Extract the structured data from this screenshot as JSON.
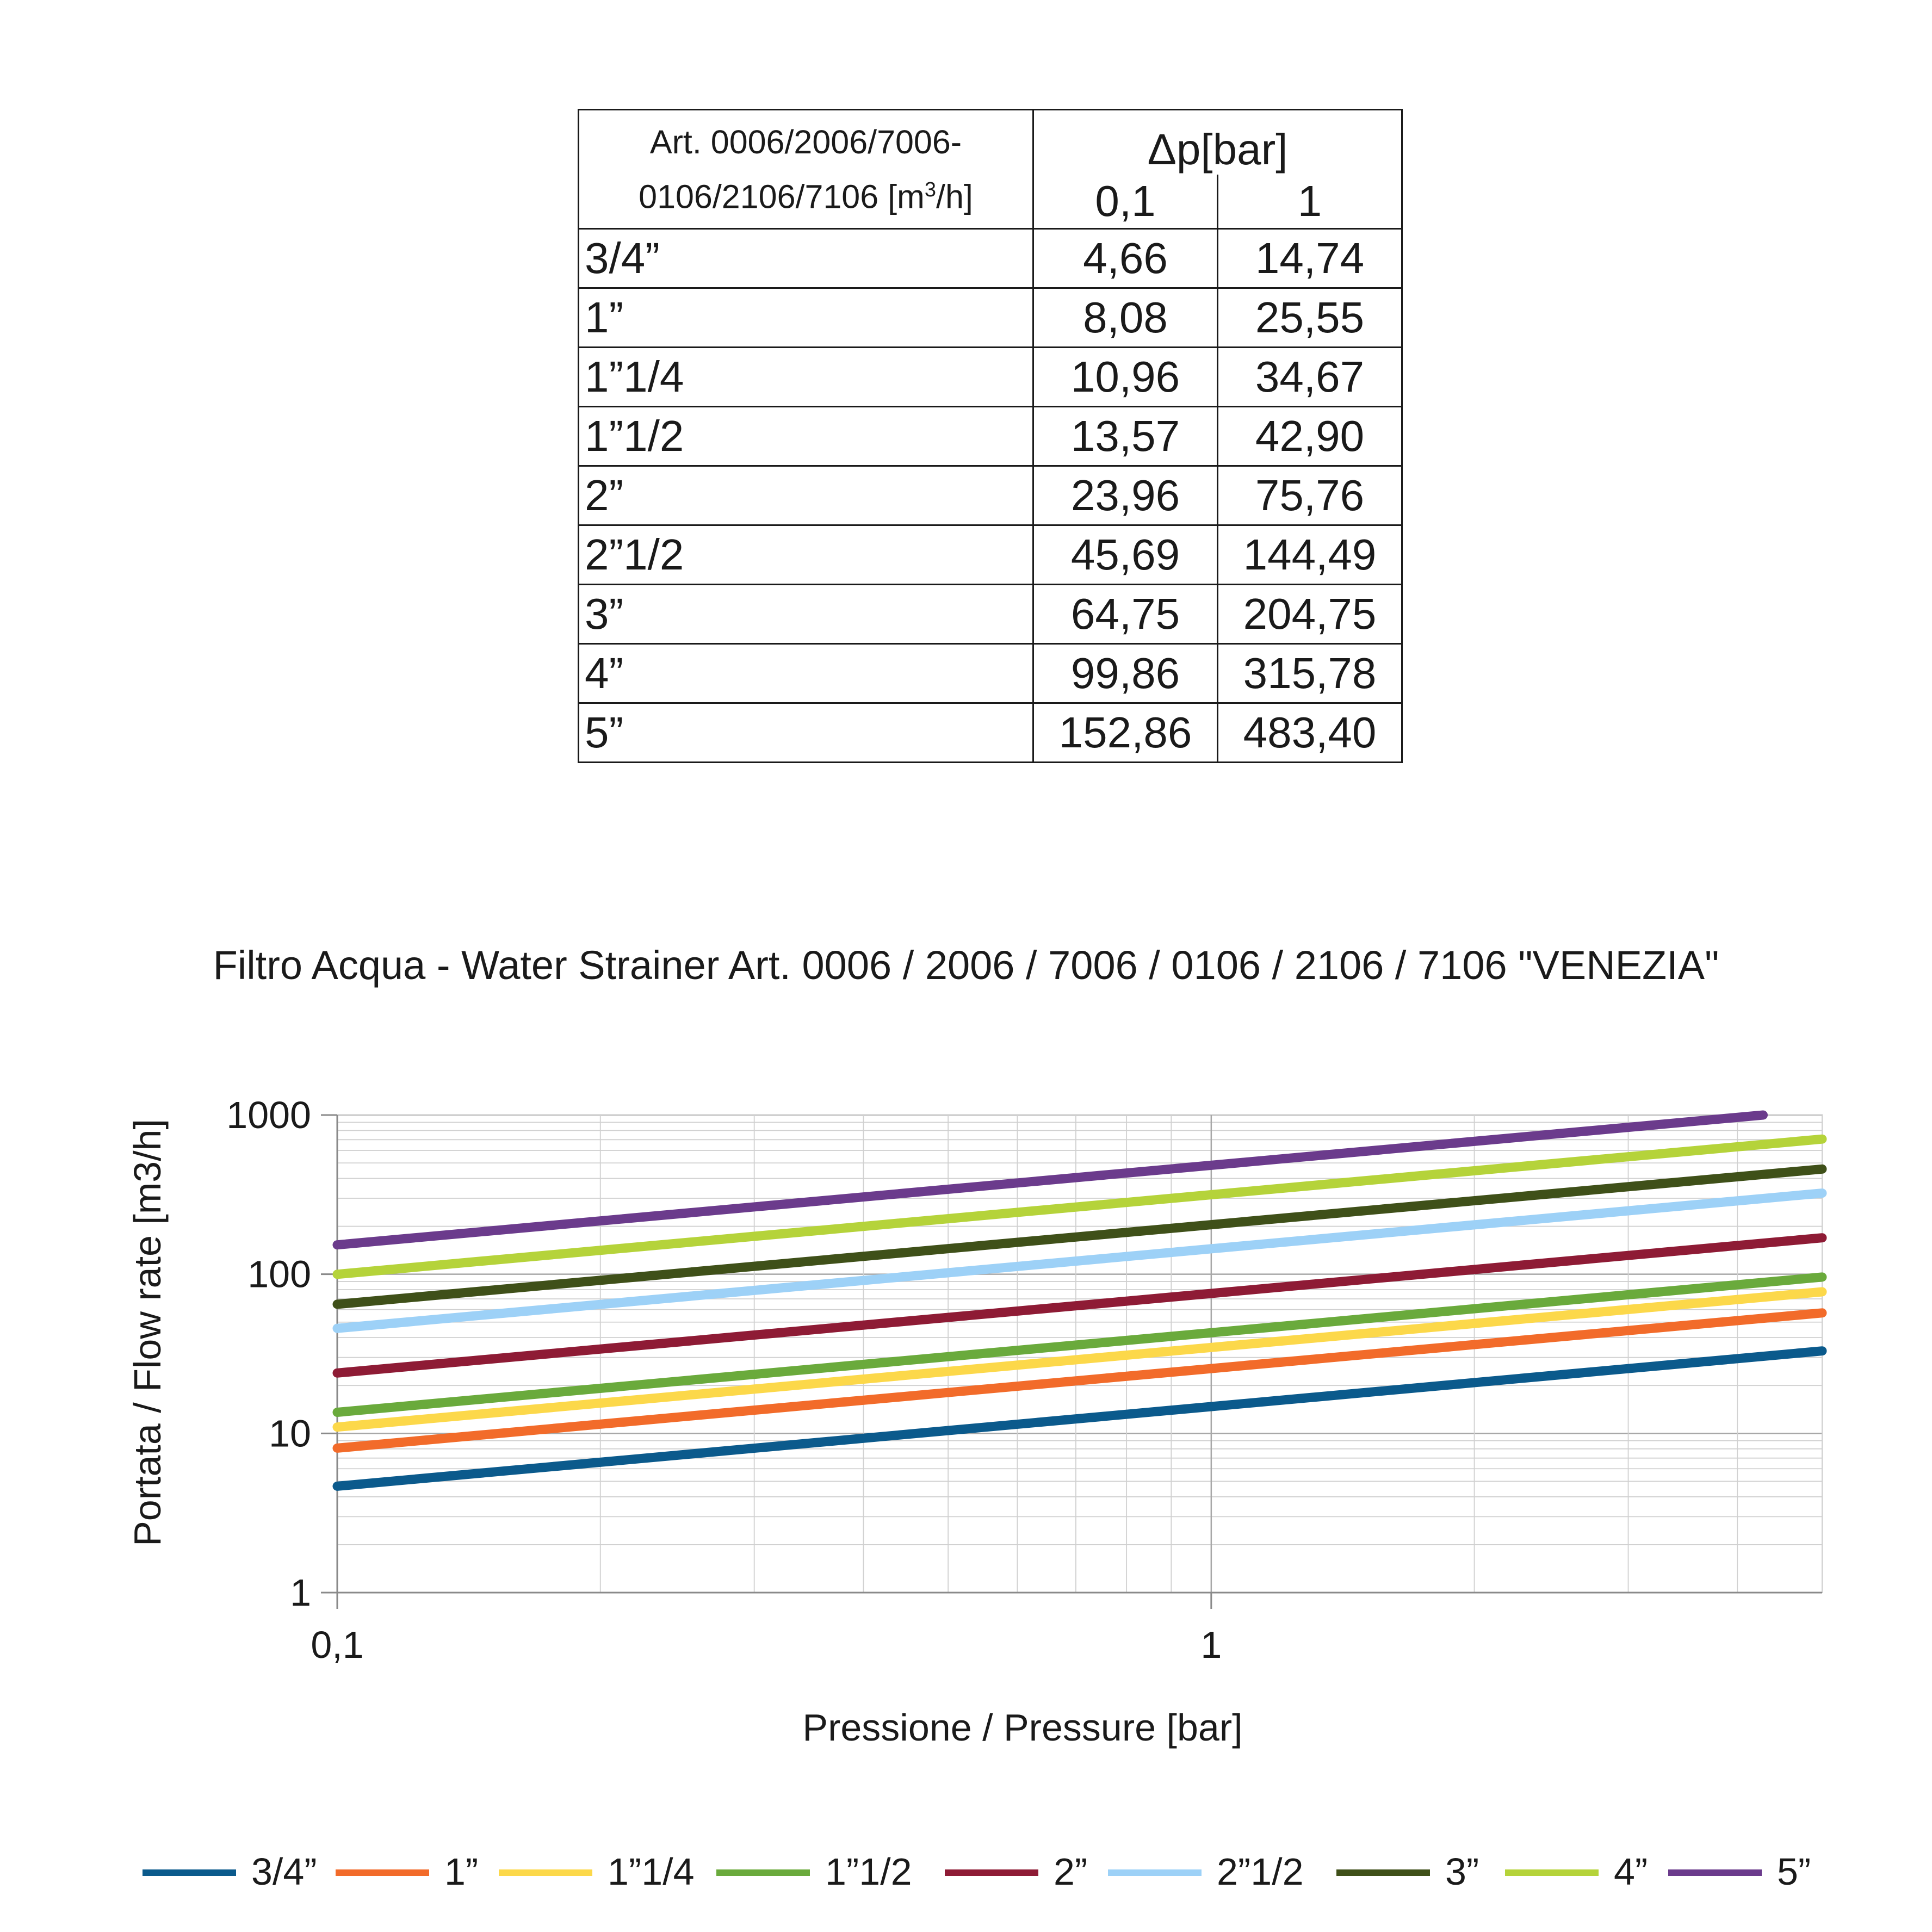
{
  "table": {
    "header_label_line1": "Art. 0006/2006/7006-",
    "header_label_line2_pre": "0106/2106/7106 [m",
    "header_label_sup": "3",
    "header_label_line2_post": "/h]",
    "header_group": "Δp[bar]",
    "columns": [
      "0,1",
      "1"
    ],
    "rows": [
      {
        "size": "3/4”",
        "v01": "4,66",
        "v1": "14,74"
      },
      {
        "size": "1”",
        "v01": "8,08",
        "v1": "25,55"
      },
      {
        "size": "1”1/4",
        "v01": "10,96",
        "v1": "34,67"
      },
      {
        "size": "1”1/2",
        "v01": "13,57",
        "v1": "42,90"
      },
      {
        "size": "2”",
        "v01": "23,96",
        "v1": "75,76"
      },
      {
        "size": "2”1/2",
        "v01": "45,69",
        "v1": "144,49"
      },
      {
        "size": "3”",
        "v01": "64,75",
        "v1": "204,75"
      },
      {
        "size": "4”",
        "v01": "99,86",
        "v1": "315,78"
      },
      {
        "size": "5”",
        "v01": "152,86",
        "v1": "483,40"
      }
    ]
  },
  "chart_data": {
    "type": "line",
    "title": "Filtro Acqua - Water Strainer Art. 0006 / 2006 / 7006 / 0106 / 2106 / 7106 \"VENEZIA\"",
    "xlabel": "Pressione / Pressure [bar]",
    "ylabel": "Portata / Flow rate [m3/h]",
    "x_scale": "log",
    "y_scale": "log",
    "xlim": [
      0.1,
      5
    ],
    "ylim": [
      1,
      1000
    ],
    "x_tick_labels": [
      {
        "value": 0.1,
        "label": "0,1"
      },
      {
        "value": 1,
        "label": "1"
      }
    ],
    "y_tick_labels": [
      {
        "value": 1,
        "label": "1"
      },
      {
        "value": 10,
        "label": "10"
      },
      {
        "value": 100,
        "label": "100"
      },
      {
        "value": 1000,
        "label": "1000"
      }
    ],
    "grid": true,
    "legend_position": "bottom",
    "series": [
      {
        "name": "3/4”",
        "color": "#0b5a8c",
        "points": [
          [
            0.1,
            4.66
          ],
          [
            1,
            14.74
          ],
          [
            5,
            32.96
          ]
        ]
      },
      {
        "name": "1”",
        "color": "#f26b2a",
        "points": [
          [
            0.1,
            8.08
          ],
          [
            1,
            25.55
          ],
          [
            5,
            57.13
          ]
        ]
      },
      {
        "name": "1”1/4",
        "color": "#fcd84a",
        "points": [
          [
            0.1,
            10.96
          ],
          [
            1,
            34.67
          ],
          [
            5,
            77.52
          ]
        ]
      },
      {
        "name": "1”1/2",
        "color": "#6aaa3c",
        "points": [
          [
            0.1,
            13.57
          ],
          [
            1,
            42.9
          ],
          [
            5,
            95.93
          ]
        ]
      },
      {
        "name": "2”",
        "color": "#8e1b35",
        "points": [
          [
            0.1,
            23.96
          ],
          [
            1,
            75.76
          ],
          [
            5,
            169.4
          ]
        ]
      },
      {
        "name": "2”1/2",
        "color": "#9dd1f7",
        "points": [
          [
            0.1,
            45.69
          ],
          [
            1,
            144.49
          ],
          [
            5,
            323.09
          ]
        ]
      },
      {
        "name": "3”",
        "color": "#3f5019",
        "points": [
          [
            0.1,
            64.75
          ],
          [
            1,
            204.75
          ],
          [
            5,
            457.83
          ]
        ]
      },
      {
        "name": "4”",
        "color": "#b5d33a",
        "points": [
          [
            0.1,
            99.86
          ],
          [
            1,
            315.78
          ],
          [
            5,
            706.11
          ]
        ]
      },
      {
        "name": "5”",
        "color": "#6b3b8c",
        "points": [
          [
            0.1,
            152.86
          ],
          [
            1,
            483.4
          ],
          [
            4.28,
            1000
          ]
        ]
      }
    ]
  }
}
